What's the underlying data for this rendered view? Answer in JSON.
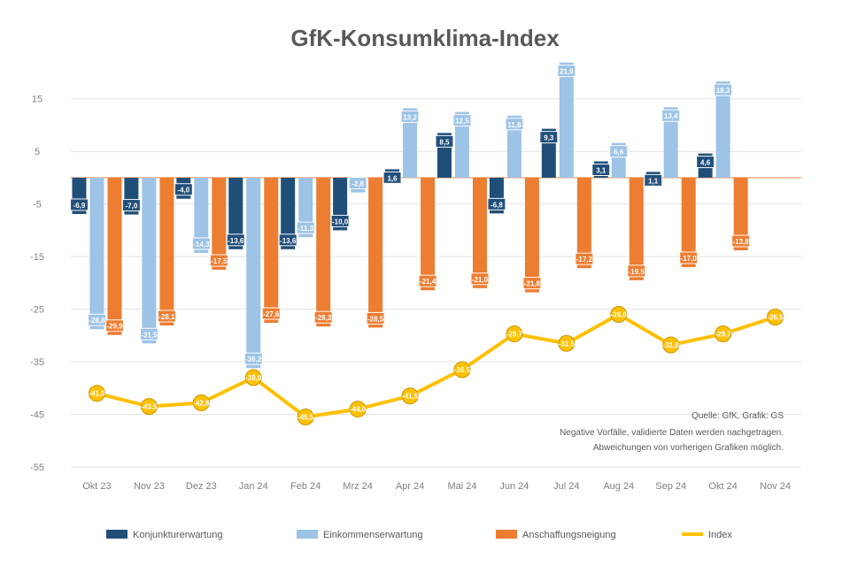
{
  "chart_data": {
    "type": "bar",
    "title": "GfK-Konsumklima-Index",
    "categories": [
      "Okt 23",
      "Nov 23",
      "Dez 23",
      "Jan 24",
      "Feb 24",
      "Mrz 24",
      "Apr 24",
      "Mai 24",
      "Jun 24",
      "Jul 24",
      "Aug 24",
      "Sep 24",
      "Okt 24",
      "Nov 24"
    ],
    "ylim": [
      -55,
      20
    ],
    "yticks": [
      15,
      5,
      -5,
      -15,
      -25,
      -35,
      -45,
      -55
    ],
    "ytick_labels": [
      "15",
      "5",
      "-5",
      "-15",
      "-25",
      "-35",
      "-45",
      "-55"
    ],
    "grid": true,
    "legend_position": "bottom",
    "series": [
      {
        "name": "Konjunkturerwartung",
        "type": "bar",
        "color": "#1f4e79",
        "values": [
          -6.9,
          -7.0,
          -4.0,
          -13.6,
          -13.6,
          -10.0,
          1.6,
          8.5,
          -6.8,
          9.3,
          3.1,
          1.1,
          4.6,
          null
        ]
      },
      {
        "name": "Einkommenserwartung",
        "type": "bar",
        "color": "#9dc3e6",
        "values": [
          -28.8,
          -31.5,
          -14.3,
          -36.2,
          -11.3,
          -2.8,
          13.2,
          12.5,
          11.8,
          21.9,
          6.6,
          13.4,
          18.3,
          null
        ]
      },
      {
        "name": "Anschaffungsneigung",
        "type": "bar",
        "color": "#ed7d31",
        "values": [
          -29.9,
          -28.1,
          -17.5,
          -27.6,
          -28.3,
          -28.5,
          -21.4,
          -21.0,
          -21.8,
          -17.2,
          -19.5,
          -17.0,
          -13.8,
          null
        ]
      },
      {
        "name": "Index",
        "type": "line",
        "color": "#ffc000",
        "values": [
          -41.0,
          -43.5,
          -42.8,
          -38.0,
          -45.5,
          -44.0,
          -41.5,
          -36.5,
          -29.7,
          -31.5,
          -26.0,
          -31.8,
          -29.7,
          -26.5
        ]
      }
    ],
    "annotations": [
      "Quelle: GfK, Grafik: GS",
      "Negative Vorfälle, validierte Daten werden nachgetragen.",
      "Abweichungen von vorherigen Grafiken möglich."
    ]
  }
}
